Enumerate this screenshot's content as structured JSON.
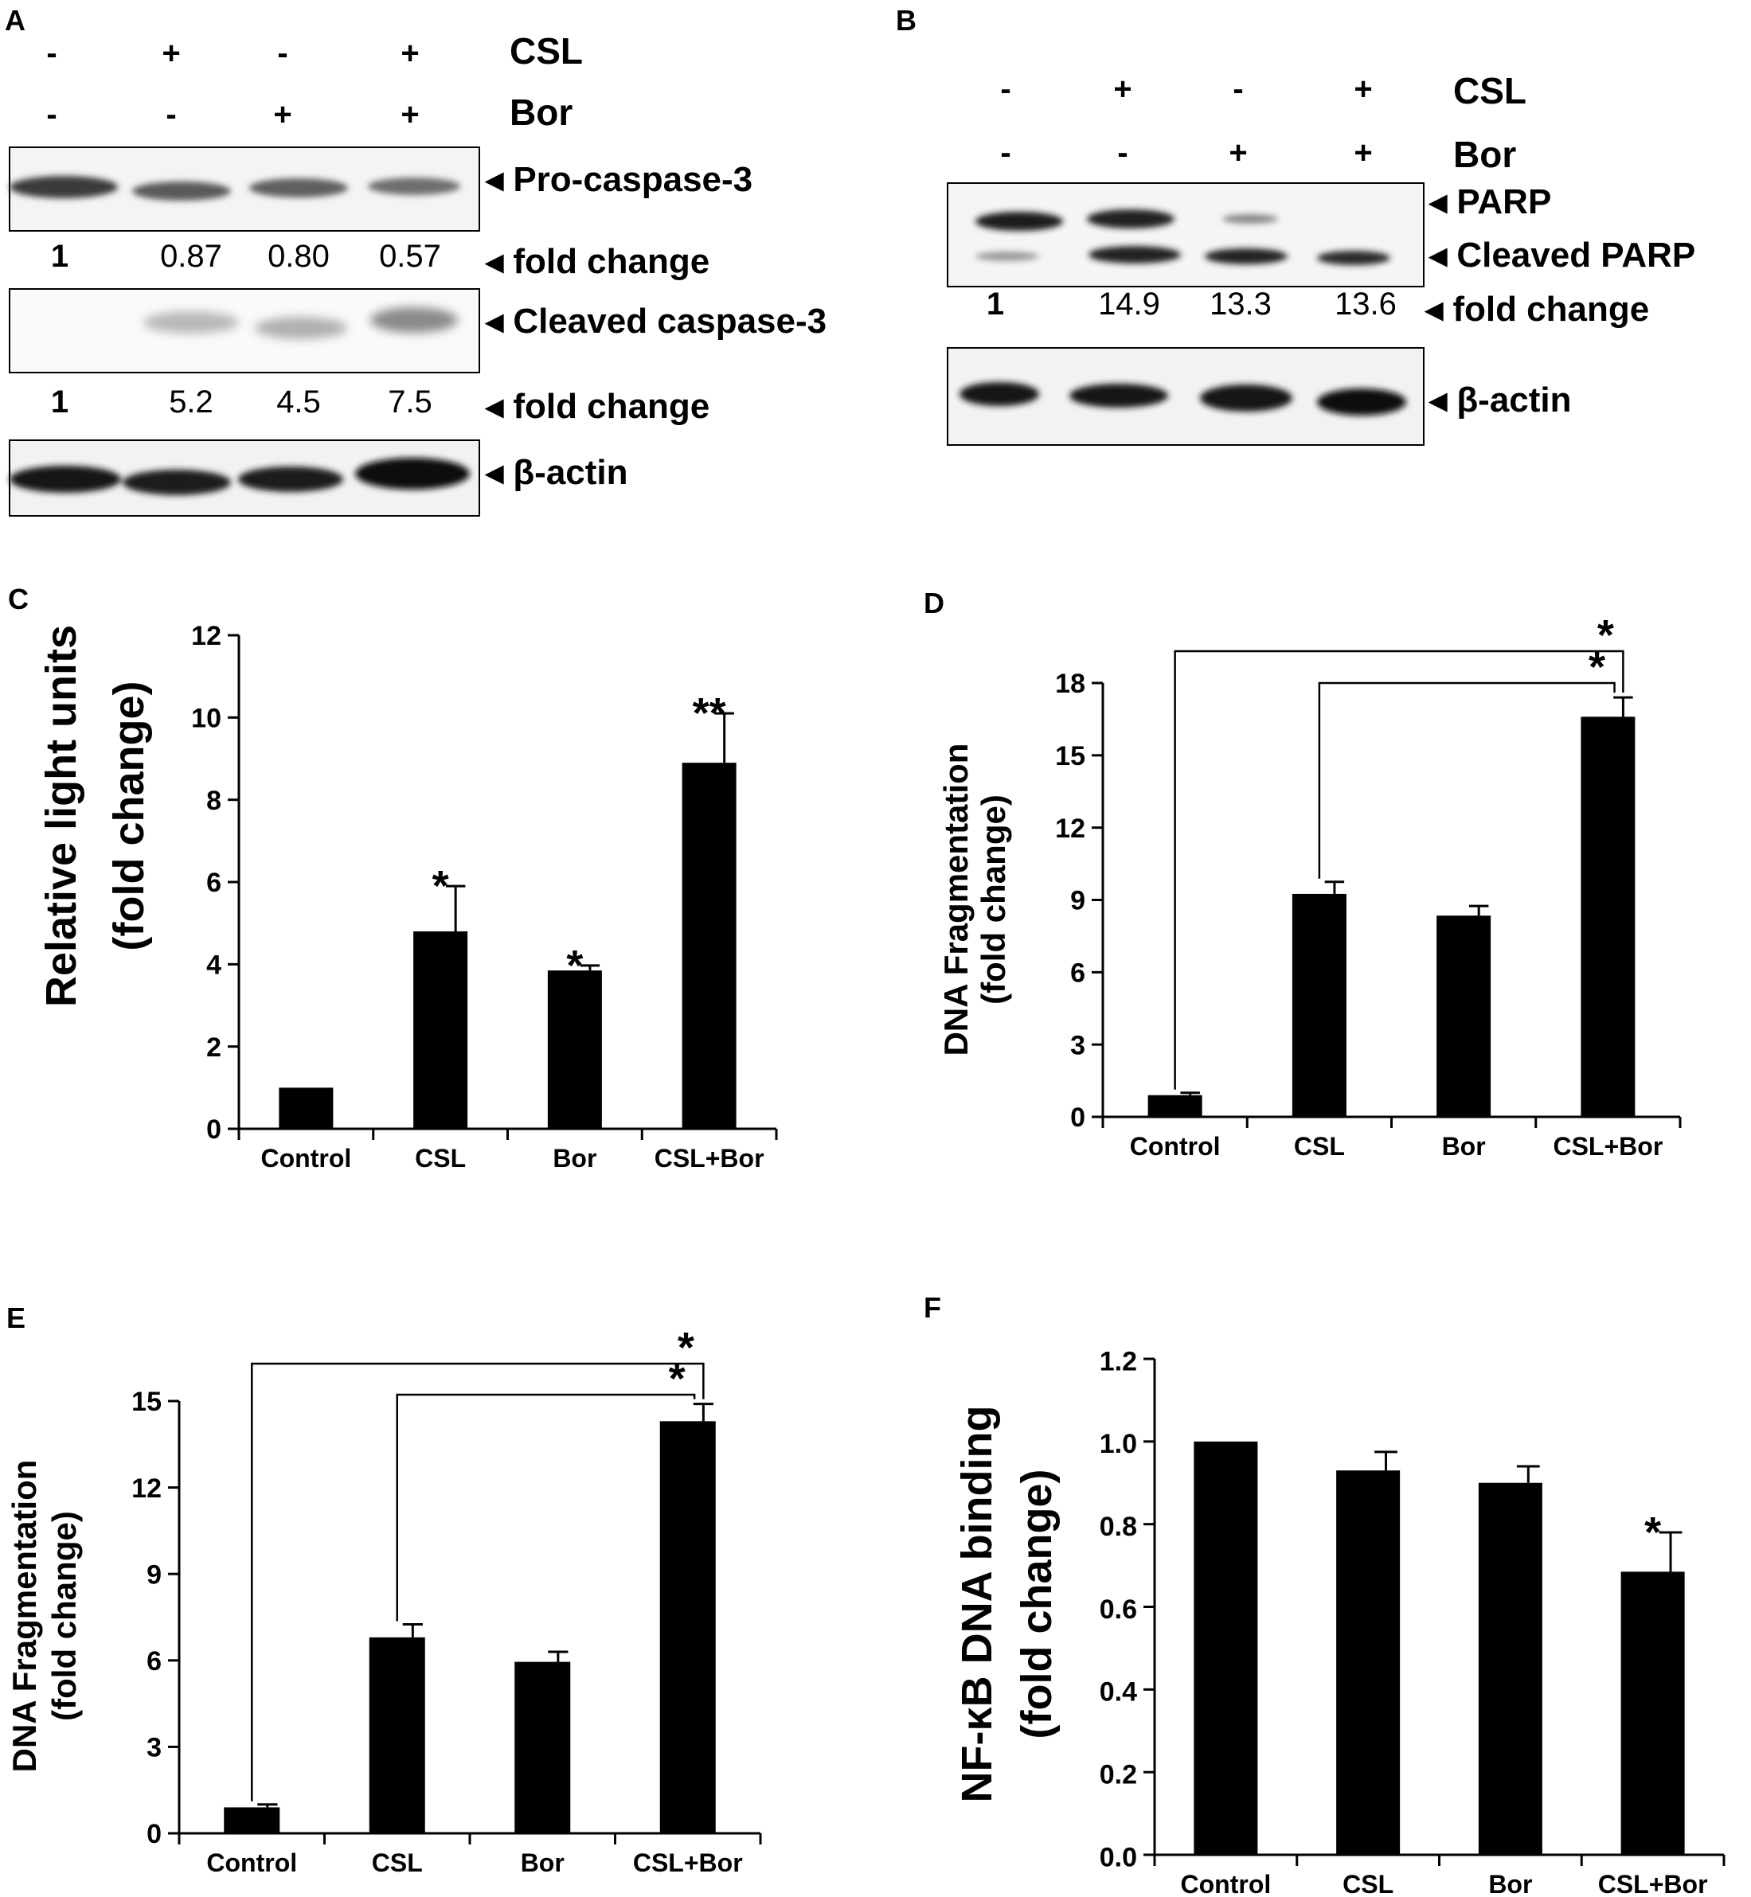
{
  "panels": {
    "A": "A",
    "B": "B",
    "C": "C",
    "D": "D",
    "E": "E",
    "F": "F"
  },
  "blots": {
    "A": {
      "treatments": [
        {
          "label": "CSL",
          "signs": [
            "-",
            "+",
            "-",
            "+"
          ]
        },
        {
          "label": "Bor",
          "signs": [
            "-",
            "-",
            "+",
            "+"
          ]
        }
      ],
      "rows": [
        {
          "label": "Pro-caspase-3",
          "fold": [
            "1",
            "0.87",
            "0.80",
            "0.57"
          ]
        },
        {
          "label": "Cleaved caspase-3",
          "fold": [
            "1",
            "5.2",
            "4.5",
            "7.5"
          ]
        },
        {
          "label": "β-actin"
        }
      ],
      "fold_label": "fold change"
    },
    "B": {
      "treatments": [
        {
          "label": "CSL",
          "signs": [
            "-",
            "+",
            "-",
            "+"
          ]
        },
        {
          "label": "Bor",
          "signs": [
            "-",
            "-",
            "+",
            "+"
          ]
        }
      ],
      "band_labels": [
        "PARP",
        "Cleaved PARP",
        "β-actin"
      ],
      "fold": [
        "1",
        "14.9",
        "13.3",
        "13.6"
      ],
      "fold_label": "fold change"
    }
  },
  "chart_data": [
    {
      "panel": "C",
      "type": "bar",
      "categories": [
        "Control",
        "CSL",
        "Bor",
        "CSL+Bor"
      ],
      "values": [
        1.0,
        4.8,
        3.85,
        8.9
      ],
      "errors": [
        0,
        1.1,
        0.12,
        1.2
      ],
      "significance": [
        "",
        "*",
        "*",
        "**"
      ],
      "ylabel": [
        "Relative light units",
        "(fold change)"
      ],
      "ylim": [
        0,
        12
      ],
      "yticks": [
        "0",
        "2",
        "4",
        "6",
        "8",
        "10",
        "12"
      ],
      "grid": false
    },
    {
      "panel": "D",
      "type": "bar",
      "categories": [
        "Control",
        "CSL",
        "Bor",
        "CSL+Bor"
      ],
      "values": [
        0.9,
        9.25,
        8.35,
        16.6
      ],
      "errors": [
        0.1,
        0.5,
        0.4,
        0.8
      ],
      "significance": [
        "",
        "",
        "",
        ""
      ],
      "brackets": [
        {
          "from": "Control",
          "to": "CSL+Bor",
          "label": "*"
        },
        {
          "from": "CSL",
          "to": "CSL+Bor",
          "label": "*"
        }
      ],
      "ylabel": [
        "DNA Fragmentation",
        "(fold change)"
      ],
      "ylim": [
        0,
        18
      ],
      "yticks": [
        "0",
        "3",
        "6",
        "9",
        "12",
        "15",
        "18"
      ],
      "grid": false
    },
    {
      "panel": "E",
      "type": "bar",
      "categories": [
        "Control",
        "CSL",
        "Bor",
        "CSL+Bor"
      ],
      "values": [
        0.9,
        6.8,
        5.95,
        14.3
      ],
      "errors": [
        0.1,
        0.45,
        0.35,
        0.6
      ],
      "significance": [
        "",
        "",
        "",
        ""
      ],
      "brackets": [
        {
          "from": "Control",
          "to": "CSL+Bor",
          "label": "*"
        },
        {
          "from": "CSL",
          "to": "CSL+Bor",
          "label": "*"
        }
      ],
      "ylabel": [
        "DNA Fragmentation",
        "(fold change)"
      ],
      "ylim": [
        0,
        15
      ],
      "yticks": [
        "0",
        "3",
        "6",
        "9",
        "12",
        "15"
      ],
      "grid": false
    },
    {
      "panel": "F",
      "type": "bar",
      "categories": [
        "Control",
        "CSL",
        "Bor",
        "CSL+Bor"
      ],
      "values": [
        1.0,
        0.93,
        0.9,
        0.685
      ],
      "errors": [
        0,
        0.045,
        0.04,
        0.095
      ],
      "significance": [
        "",
        "",
        "",
        "*"
      ],
      "ylabel": [
        "NF-κB DNA binding",
        "(fold change)"
      ],
      "ylim": [
        0,
        1.2
      ],
      "yticks": [
        "0.0",
        "0.2",
        "0.4",
        "0.6",
        "0.8",
        "1.0",
        "1.2"
      ],
      "grid": false
    }
  ]
}
